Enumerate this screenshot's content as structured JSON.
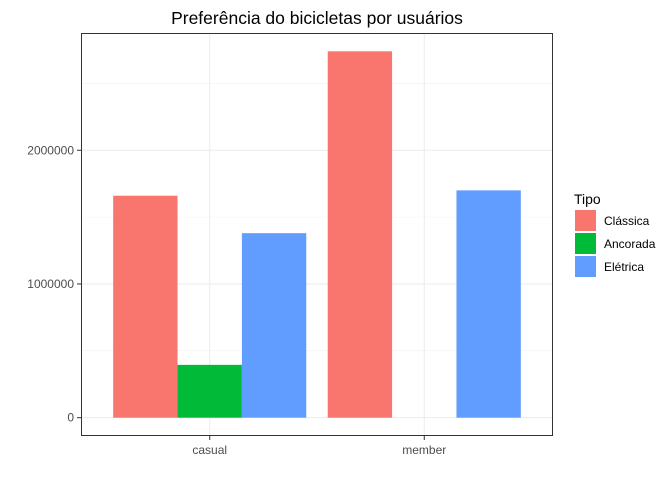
{
  "chart_data": {
    "type": "bar",
    "title": "Preferência do bicicletas por usuários",
    "xlabel": "",
    "ylabel": "",
    "categories": [
      "casual",
      "member"
    ],
    "series": [
      {
        "name": "Clássica",
        "color": "#F8766D",
        "values": [
          1660000,
          2740000
        ]
      },
      {
        "name": "Ancorada",
        "color": "#00BA38",
        "values": [
          395000,
          0
        ]
      },
      {
        "name": "Elétrica",
        "color": "#619CFF",
        "values": [
          1380000,
          1700000
        ]
      }
    ],
    "y_ticks": [
      0,
      1000000,
      2000000
    ],
    "y_tick_labels": [
      "0",
      "1000000",
      "2000000"
    ],
    "ylim": [
      -137000,
      2877000
    ],
    "grid": true,
    "legend": {
      "title": "Tipo",
      "position": "right"
    }
  }
}
